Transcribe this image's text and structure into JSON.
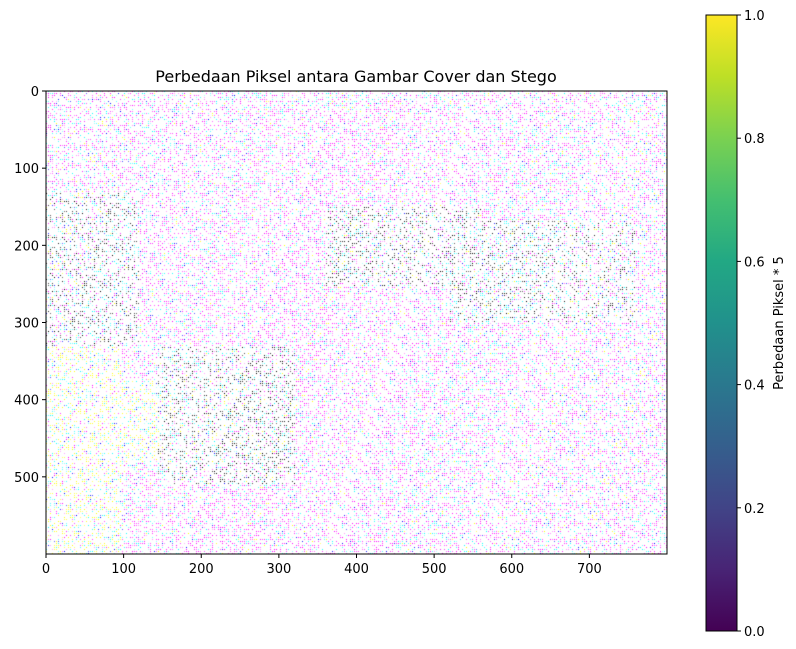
{
  "chart_data": {
    "type": "heatmap",
    "title": "Perbedaan Piksel antara Gambar Cover dan Stego",
    "x": {
      "range": [
        0,
        800
      ],
      "ticks": [
        0,
        100,
        200,
        300,
        400,
        500,
        600,
        700
      ],
      "tick_labels": [
        "0",
        "100",
        "200",
        "300",
        "400",
        "500",
        "600",
        "700"
      ]
    },
    "y": {
      "range": [
        0,
        600
      ],
      "ticks": [
        0,
        100,
        200,
        300,
        400,
        500
      ],
      "tick_labels": [
        "0",
        "100",
        "200",
        "300",
        "400",
        "500"
      ]
    },
    "colorbar": {
      "label": "Perbedaan Piksel * 5",
      "colormap": "viridis",
      "range": [
        0,
        1
      ],
      "ticks": [
        0.0,
        0.2,
        0.4,
        0.6,
        0.8,
        1.0
      ],
      "tick_labels": [
        "0.0",
        "0.2",
        "0.4",
        "0.6",
        "0.8",
        "1.0"
      ]
    },
    "image_colors": [
      "#ff00ff",
      "#00ffff",
      "#ffff00",
      "#000000",
      "#0000ff",
      "#ff80ff",
      "#80ffff"
    ],
    "grid": false
  }
}
